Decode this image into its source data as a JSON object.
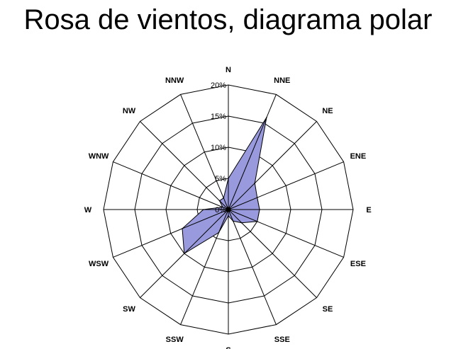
{
  "chart_data": {
    "type": "radar",
    "title": "Rosa de vientos, diagrama polar",
    "categories": [
      "N",
      "NNE",
      "NE",
      "ENE",
      "E",
      "ESE",
      "SE",
      "SSE",
      "S",
      "SSW",
      "SW",
      "WSW",
      "W",
      "WNW",
      "NW",
      "NNW"
    ],
    "series": [
      {
        "values": [
          5,
          16,
          6,
          5,
          5,
          5,
          3,
          2,
          1,
          4,
          10,
          8,
          4,
          1,
          2,
          2
        ],
        "color": "#9999DD",
        "stroke": "#000000"
      }
    ],
    "radial_ticks": [
      "0%",
      "5%",
      "10%",
      "15%",
      "20%"
    ],
    "rlim": [
      0,
      20
    ],
    "grid": true,
    "grid_shape": "polygon",
    "grid_color": "#000000"
  }
}
